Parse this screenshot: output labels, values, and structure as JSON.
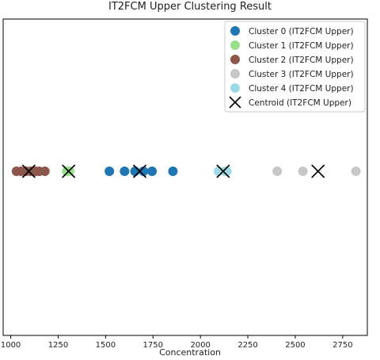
{
  "chart_data": {
    "type": "scatter",
    "title": "IT2FCM Upper Clustering Result",
    "xlabel": "Concentration",
    "ylabel": "",
    "xlim": [
      960,
      2880
    ],
    "xticks": [
      1000,
      1250,
      1500,
      1750,
      2000,
      2250,
      2500,
      2750
    ],
    "grid": false,
    "legend_position": "top-right",
    "series": [
      {
        "name": "Cluster 0 (IT2FCM Upper)",
        "color": "#1f77b4",
        "marker": "circle",
        "x": [
          1520,
          1600,
          1655,
          1700,
          1745,
          1855
        ]
      },
      {
        "name": "Cluster 1 (IT2FCM Upper)",
        "color": "#98df8a",
        "marker": "circle",
        "x": [
          1295,
          1310
        ]
      },
      {
        "name": "Cluster 2 (IT2FCM Upper)",
        "color": "#8c564b",
        "marker": "circle",
        "x": [
          1030,
          1055,
          1080,
          1105,
          1130,
          1150,
          1180
        ]
      },
      {
        "name": "Cluster 3 (IT2FCM Upper)",
        "color": "#c7c7c7",
        "marker": "circle",
        "x": [
          2405,
          2540,
          2820
        ]
      },
      {
        "name": "Cluster 4 (IT2FCM Upper)",
        "color": "#9edae5",
        "marker": "circle",
        "x": [
          2095,
          2130,
          2140
        ]
      },
      {
        "name": "Centroid (IT2FCM Upper)",
        "color": "#000000",
        "marker": "x",
        "x": [
          1095,
          1305,
          1680,
          2120,
          2620
        ]
      }
    ]
  }
}
